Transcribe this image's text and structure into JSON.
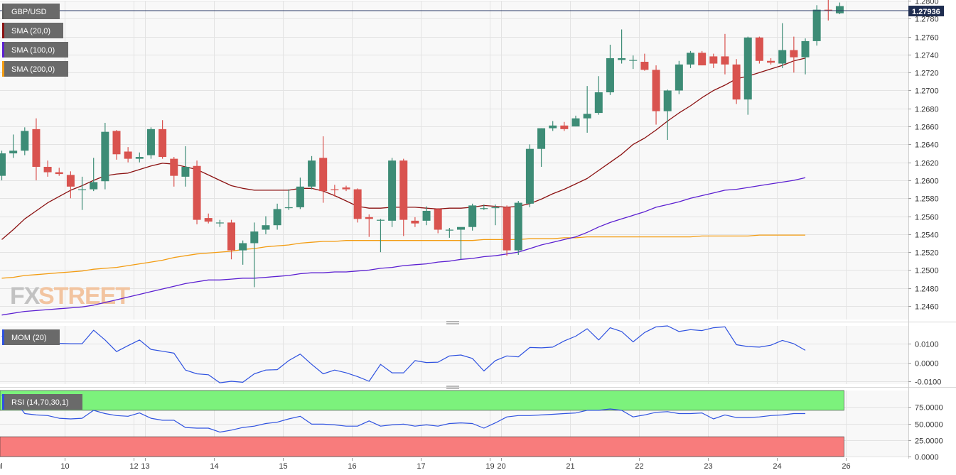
{
  "symbol": "GBP/USD",
  "last_price": "1.27936",
  "watermark": {
    "fx": "FX",
    "street": "STREET"
  },
  "colors": {
    "bull": "#3d8c76",
    "bear": "#d9534f",
    "sma20": "#8b1111",
    "sma100": "#5b1fd1",
    "sma200": "#f39c12",
    "mom": "#2f52e0",
    "rsi": "#2f52e0",
    "rsi_overbought": "#7cf27c",
    "rsi_oversold": "#f87c7c"
  },
  "legends": {
    "main": [
      {
        "label": "GBP/USD",
        "color": "#5a5a5a"
      },
      {
        "label": "SMA (20,0)",
        "color": "#8b1111"
      },
      {
        "label": "SMA (100,0)",
        "color": "#5b1fd1"
      },
      {
        "label": "SMA (200,0)",
        "color": "#f39c12"
      }
    ],
    "mom": {
      "label": "MOM (20)",
      "color": "#2f52e0"
    },
    "rsi": {
      "label": "RSI (14,70,30,1)",
      "color": "#2f52e0"
    }
  },
  "x_axis": {
    "labels": [
      {
        "i": -0.4,
        "text": "Jul"
      },
      {
        "i": 5.5,
        "text": "10"
      },
      {
        "i": 11.5,
        "text": "12"
      },
      {
        "i": 12.5,
        "text": "13"
      },
      {
        "i": 18.5,
        "text": "14"
      },
      {
        "i": 24.5,
        "text": "15"
      },
      {
        "i": 30.5,
        "text": "16"
      },
      {
        "i": 36.5,
        "text": "17"
      },
      {
        "i": 42.5,
        "text": "19"
      },
      {
        "i": 43.5,
        "text": "20"
      },
      {
        "i": 49.5,
        "text": "21"
      },
      {
        "i": 55.5,
        "text": "22"
      },
      {
        "i": 61.5,
        "text": "23"
      },
      {
        "i": 67.5,
        "text": "24"
      },
      {
        "i": 73.5,
        "text": "26"
      }
    ]
  },
  "chart_data": [
    {
      "type": "candlestick",
      "title": "GBP/USD",
      "ylim": [
        1.2445,
        1.28
      ],
      "y_ticks": [
        "1.2460",
        "1.2480",
        "1.2500",
        "1.2520",
        "1.2540",
        "1.2560",
        "1.2580",
        "1.2600",
        "1.2620",
        "1.2640",
        "1.2660",
        "1.2680",
        "1.2700",
        "1.2720",
        "1.2740",
        "1.2760",
        "1.2780",
        "1.2800"
      ],
      "ohlc": [
        [
          1.2605,
          1.2633,
          1.26,
          1.263
        ],
        [
          1.263,
          1.2651,
          1.2625,
          1.2633
        ],
        [
          1.2633,
          1.2659,
          1.2628,
          1.2655
        ],
        [
          1.2657,
          1.2669,
          1.26,
          1.2615
        ],
        [
          1.2615,
          1.2622,
          1.2604,
          1.2609
        ],
        [
          1.2609,
          1.2614,
          1.2605,
          1.2607
        ],
        [
          1.2606,
          1.261,
          1.258,
          1.2593
        ],
        [
          1.259,
          1.2604,
          1.2567,
          1.259
        ],
        [
          1.259,
          1.2625,
          1.2588,
          1.2598
        ],
        [
          1.2599,
          1.2664,
          1.259,
          1.2654
        ],
        [
          1.2655,
          1.2656,
          1.2623,
          1.2629
        ],
        [
          1.2632,
          1.2637,
          1.262,
          1.2624
        ],
        [
          1.2624,
          1.2631,
          1.262,
          1.2626
        ],
        [
          1.2628,
          1.2659,
          1.2624,
          1.2657
        ],
        [
          1.2657,
          1.2667,
          1.2624,
          1.2626
        ],
        [
          1.2624,
          1.2626,
          1.2593,
          1.2605
        ],
        [
          1.2604,
          1.2638,
          1.2593,
          1.2615
        ],
        [
          1.2616,
          1.2622,
          1.2551,
          1.2556
        ],
        [
          1.2558,
          1.2563,
          1.2552,
          1.2554
        ],
        [
          1.2553,
          1.2556,
          1.2548,
          1.2553
        ],
        [
          1.2553,
          1.2556,
          1.2512,
          1.2522
        ],
        [
          1.2522,
          1.2533,
          1.2506,
          1.253
        ],
        [
          1.253,
          1.2553,
          1.2481,
          1.2543
        ],
        [
          1.2545,
          1.256,
          1.254,
          1.255
        ],
        [
          1.255,
          1.2574,
          1.2545,
          1.2568
        ],
        [
          1.2569,
          1.259,
          1.2567,
          1.257
        ],
        [
          1.257,
          1.2603,
          1.2568,
          1.2593
        ],
        [
          1.2593,
          1.2627,
          1.259,
          1.2622
        ],
        [
          1.2625,
          1.2649,
          1.2575,
          1.2588
        ],
        [
          1.259,
          1.2595,
          1.2582,
          1.2589
        ],
        [
          1.2592,
          1.2594,
          1.2588,
          1.259
        ],
        [
          1.259,
          1.2591,
          1.2553,
          1.2557
        ],
        [
          1.2559,
          1.2562,
          1.2537,
          1.2557
        ],
        [
          1.2556,
          1.2557,
          1.252,
          1.2556
        ],
        [
          1.2555,
          1.2625,
          1.2548,
          1.2622
        ],
        [
          1.2622,
          1.2624,
          1.2538,
          1.2556
        ],
        [
          1.2555,
          1.2559,
          1.2548,
          1.2552
        ],
        [
          1.2555,
          1.2571,
          1.255,
          1.2566
        ],
        [
          1.2568,
          1.2569,
          1.2541,
          1.2545
        ],
        [
          1.2545,
          1.2547,
          1.2536,
          1.2545
        ],
        [
          1.2545,
          1.2547,
          1.2512,
          1.2548
        ],
        [
          1.2548,
          1.2574,
          1.2544,
          1.2572
        ],
        [
          1.2569,
          1.2573,
          1.2567,
          1.2569
        ],
        [
          1.2569,
          1.2573,
          1.255,
          1.257
        ],
        [
          1.257,
          1.2572,
          1.2516,
          1.2522
        ],
        [
          1.2522,
          1.2577,
          1.2517,
          1.2575
        ],
        [
          1.2574,
          1.264,
          1.257,
          1.2635
        ],
        [
          1.2635,
          1.2658,
          1.2615,
          1.2658
        ],
        [
          1.2658,
          1.2666,
          1.2655,
          1.2661
        ],
        [
          1.2661,
          1.2665,
          1.2655,
          1.2657
        ],
        [
          1.266,
          1.2672,
          1.266,
          1.2669
        ],
        [
          1.2669,
          1.2705,
          1.2653,
          1.2674
        ],
        [
          1.2675,
          1.2716,
          1.2673,
          1.2698
        ],
        [
          1.2698,
          1.2751,
          1.2695,
          1.2736
        ],
        [
          1.2734,
          1.2768,
          1.273,
          1.2736
        ],
        [
          1.2734,
          1.2739,
          1.2724,
          1.2734
        ],
        [
          1.2732,
          1.2741,
          1.2722,
          1.2723
        ],
        [
          1.2723,
          1.2728,
          1.2662,
          1.2677
        ],
        [
          1.2677,
          1.2701,
          1.2645,
          1.27
        ],
        [
          1.27,
          1.2733,
          1.2696,
          1.2729
        ],
        [
          1.2729,
          1.2744,
          1.2725,
          1.2742
        ],
        [
          1.2742,
          1.2744,
          1.2728,
          1.2728
        ],
        [
          1.2738,
          1.2741,
          1.2725,
          1.273
        ],
        [
          1.2738,
          1.2763,
          1.2718,
          1.2729
        ],
        [
          1.2729,
          1.2735,
          1.2685,
          1.269
        ],
        [
          1.269,
          1.276,
          1.2673,
          1.2759
        ],
        [
          1.2759,
          1.276,
          1.273,
          1.2733
        ],
        [
          1.2733,
          1.2736,
          1.2729,
          1.2731
        ],
        [
          1.273,
          1.2775,
          1.2725,
          1.2745
        ],
        [
          1.2745,
          1.276,
          1.272,
          1.2737
        ],
        [
          1.2737,
          1.2758,
          1.2718,
          1.2755
        ],
        [
          1.2755,
          1.2795,
          1.275,
          1.279
        ],
        [
          1.279,
          1.2803,
          1.2778,
          1.2789
        ],
        [
          1.2786,
          1.2798,
          1.2785,
          1.2794
        ]
      ],
      "sma20": [
        1.2534,
        1.2545,
        1.2557,
        1.2566,
        1.2575,
        1.2582,
        1.2589,
        1.2594,
        1.26,
        1.2605,
        1.2607,
        1.2608,
        1.2612,
        1.2616,
        1.2619,
        1.2618,
        1.2615,
        1.2612,
        1.2606,
        1.26,
        1.2594,
        1.2591,
        1.2589,
        1.2589,
        1.2589,
        1.2589,
        1.2591,
        1.2591,
        1.2588,
        1.2583,
        1.2577,
        1.2571,
        1.2569,
        1.2569,
        1.257,
        1.257,
        1.257,
        1.2569,
        1.2568,
        1.2569,
        1.2569,
        1.257,
        1.2572,
        1.2571,
        1.257,
        1.2571,
        1.2574,
        1.2579,
        1.2585,
        1.259,
        1.2596,
        1.2602,
        1.2611,
        1.262,
        1.2629,
        1.264,
        1.2647,
        1.2656,
        1.2666,
        1.2675,
        1.2683,
        1.2692,
        1.27,
        1.2706,
        1.2713,
        1.2716,
        1.272,
        1.2724,
        1.2728,
        1.2733,
        1.2736
      ],
      "sma100": [
        1.245,
        1.2452,
        1.2454,
        1.2455,
        1.2456,
        1.2457,
        1.2458,
        1.2459,
        1.2461,
        1.2464,
        1.2467,
        1.247,
        1.2473,
        1.2476,
        1.2479,
        1.2482,
        1.2485,
        1.2487,
        1.2489,
        1.2489,
        1.249,
        1.2491,
        1.2491,
        1.2492,
        1.2493,
        1.2494,
        1.2496,
        1.2497,
        1.2497,
        1.2498,
        1.2498,
        1.2499,
        1.25,
        1.2502,
        1.2503,
        1.2505,
        1.2506,
        1.2507,
        1.2509,
        1.251,
        1.2512,
        1.2513,
        1.2515,
        1.2516,
        1.2518,
        1.252,
        1.2524,
        1.2528,
        1.2531,
        1.2534,
        1.2537,
        1.2542,
        1.2548,
        1.2553,
        1.2557,
        1.2561,
        1.2565,
        1.257,
        1.2573,
        1.2576,
        1.258,
        1.2583,
        1.2586,
        1.2589,
        1.259,
        1.2592,
        1.2594,
        1.2596,
        1.2598,
        1.26,
        1.2603
      ],
      "sma200": [
        1.2491,
        1.2492,
        1.2494,
        1.2495,
        1.2496,
        1.2497,
        1.2498,
        1.2499,
        1.2501,
        1.2502,
        1.2503,
        1.2505,
        1.2507,
        1.2509,
        1.2511,
        1.2514,
        1.2516,
        1.2518,
        1.2519,
        1.252,
        1.2521,
        1.2523,
        1.2524,
        1.2526,
        1.2527,
        1.2528,
        1.253,
        1.2531,
        1.2532,
        1.2532,
        1.2533,
        1.2533,
        1.2533,
        1.2533,
        1.2533,
        1.2533,
        1.2533,
        1.2533,
        1.2533,
        1.2533,
        1.2533,
        1.2533,
        1.2534,
        1.2534,
        1.2534,
        1.2534,
        1.2535,
        1.2535,
        1.2535,
        1.2536,
        1.2536,
        1.2537,
        1.2537,
        1.2537,
        1.2537,
        1.2537,
        1.2537,
        1.2537,
        1.2537,
        1.2537,
        1.2537,
        1.2538,
        1.2538,
        1.2538,
        1.2538,
        1.2538,
        1.2539,
        1.2539,
        1.2539,
        1.2539,
        1.2539
      ]
    },
    {
      "type": "line",
      "title": "MOM (20)",
      "ylim": [
        -0.0115,
        0.0195
      ],
      "y_ticks": [
        "0.0100",
        "0.0000",
        "-0.0100"
      ],
      "values": [
        0.014,
        0.012,
        0.013,
        0.0135,
        0.012,
        0.0102,
        0.01,
        0.01,
        0.0172,
        0.012,
        0.0058,
        0.009,
        0.012,
        0.007,
        0.006,
        0.005,
        -0.004,
        -0.006,
        -0.0065,
        -0.0108,
        -0.01,
        -0.0105,
        -0.006,
        -0.004,
        -0.0038,
        0.001,
        0.0045,
        -0.001,
        -0.006,
        -0.004,
        -0.0055,
        -0.0075,
        -0.01,
        -0.001,
        -0.0055,
        -0.0055,
        0.001,
        0.0,
        0.0002,
        0.0035,
        0.004,
        0.0022,
        -0.0045,
        0.001,
        0.0035,
        0.003,
        0.008,
        0.0078,
        0.0082,
        0.0115,
        0.014,
        0.018,
        0.012,
        0.0185,
        0.0165,
        0.011,
        0.016,
        0.019,
        0.0195,
        0.0165,
        0.0175,
        0.017,
        0.0185,
        0.019,
        0.0095,
        0.0085,
        0.0082,
        0.0092,
        0.0118,
        0.01,
        0.0065
      ]
    },
    {
      "type": "line",
      "title": "RSI (14,70,30,1)",
      "ylim": [
        0,
        100
      ],
      "y_ticks": [
        "75.0000",
        "50.0000",
        "25.0000",
        "0.0000"
      ],
      "levels": {
        "overbought": 70,
        "oversold": 30
      },
      "values": [
        93,
        88,
        65,
        63,
        62,
        58,
        57,
        58,
        70,
        65,
        62,
        61,
        66,
        58,
        55,
        55,
        44,
        43,
        43,
        37,
        40,
        44,
        46,
        50,
        52,
        57,
        61,
        49,
        49,
        48,
        46,
        46,
        54,
        46,
        48,
        49,
        46,
        48,
        46,
        50,
        51,
        50,
        43,
        51,
        60,
        62,
        62,
        63,
        64,
        65,
        66,
        70,
        70,
        72,
        70,
        60,
        63,
        67,
        68,
        65,
        65,
        66,
        57,
        63,
        59,
        59,
        60,
        62,
        63,
        65,
        65
      ]
    }
  ]
}
